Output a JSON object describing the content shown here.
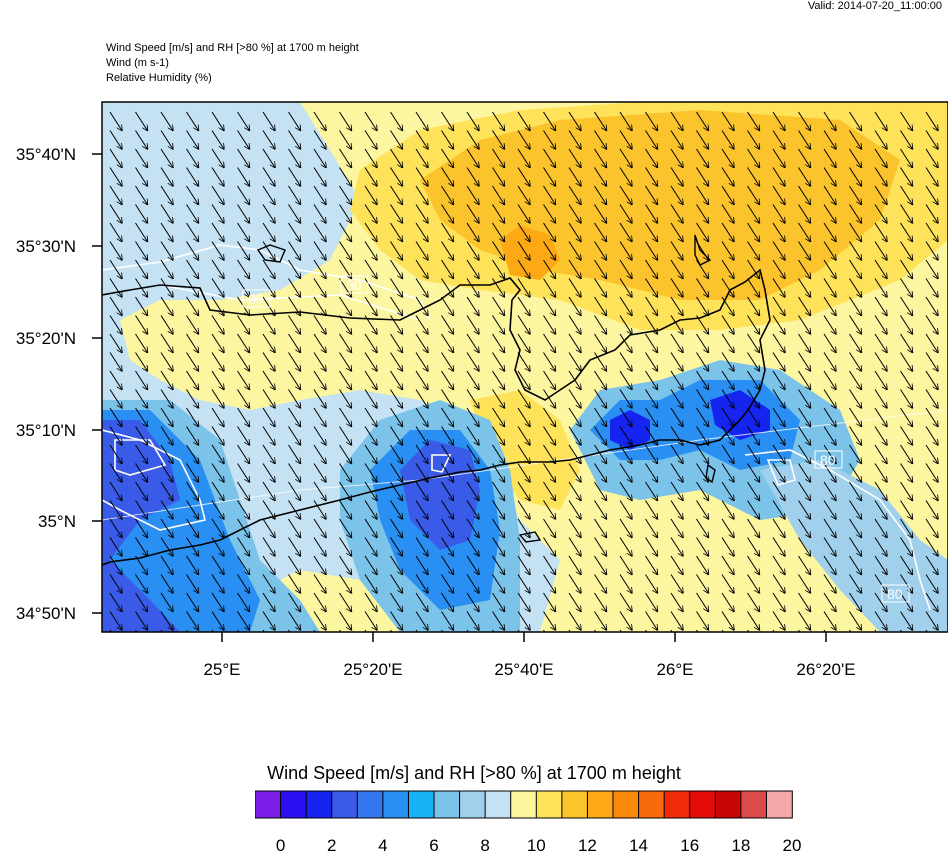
{
  "valid_time": "Valid: 2014-07-20_11:00:00",
  "header": {
    "line1": "Wind Speed [m/s] and RH [>80 %] at 1700 m height",
    "line2": "Wind   (m s-1)",
    "line3": "Relative Humidity   (%)"
  },
  "lat_labels": [
    "35°40'N",
    "35°30'N",
    "35°20'N",
    "35°10'N",
    "35°N",
    "34°50'N"
  ],
  "lon_labels": [
    "25°E",
    "25°20'E",
    "25°40'E",
    "26°E",
    "26°20'E"
  ],
  "contour_labels": [
    "80",
    "80",
    "80",
    "80"
  ],
  "colorbar": {
    "title": "Wind Speed [m/s] and RH [>80 %] at 1700 m height",
    "labels": [
      "0",
      "2",
      "4",
      "6",
      "8",
      "10",
      "12",
      "14",
      "16",
      "18",
      "20"
    ],
    "colors": [
      "#7b1ee8",
      "#2a10f0",
      "#1524ee",
      "#3a5ae8",
      "#3577ee",
      "#2a8ff2",
      "#19b2f4",
      "#7cc3ea",
      "#a1d0ec",
      "#c4e2f3",
      "#fdf6a0",
      "#fde25a",
      "#fcc42c",
      "#fca915",
      "#fb8a0b",
      "#f96a0a",
      "#f32a0a",
      "#e60c0c",
      "#c80606",
      "#dd4a4a",
      "#f6a7a7"
    ]
  },
  "map": {
    "field_type": "wind speed shading with RH>80% contours and wind vectors",
    "wind_direction": "north-northwest to south-southeast"
  }
}
